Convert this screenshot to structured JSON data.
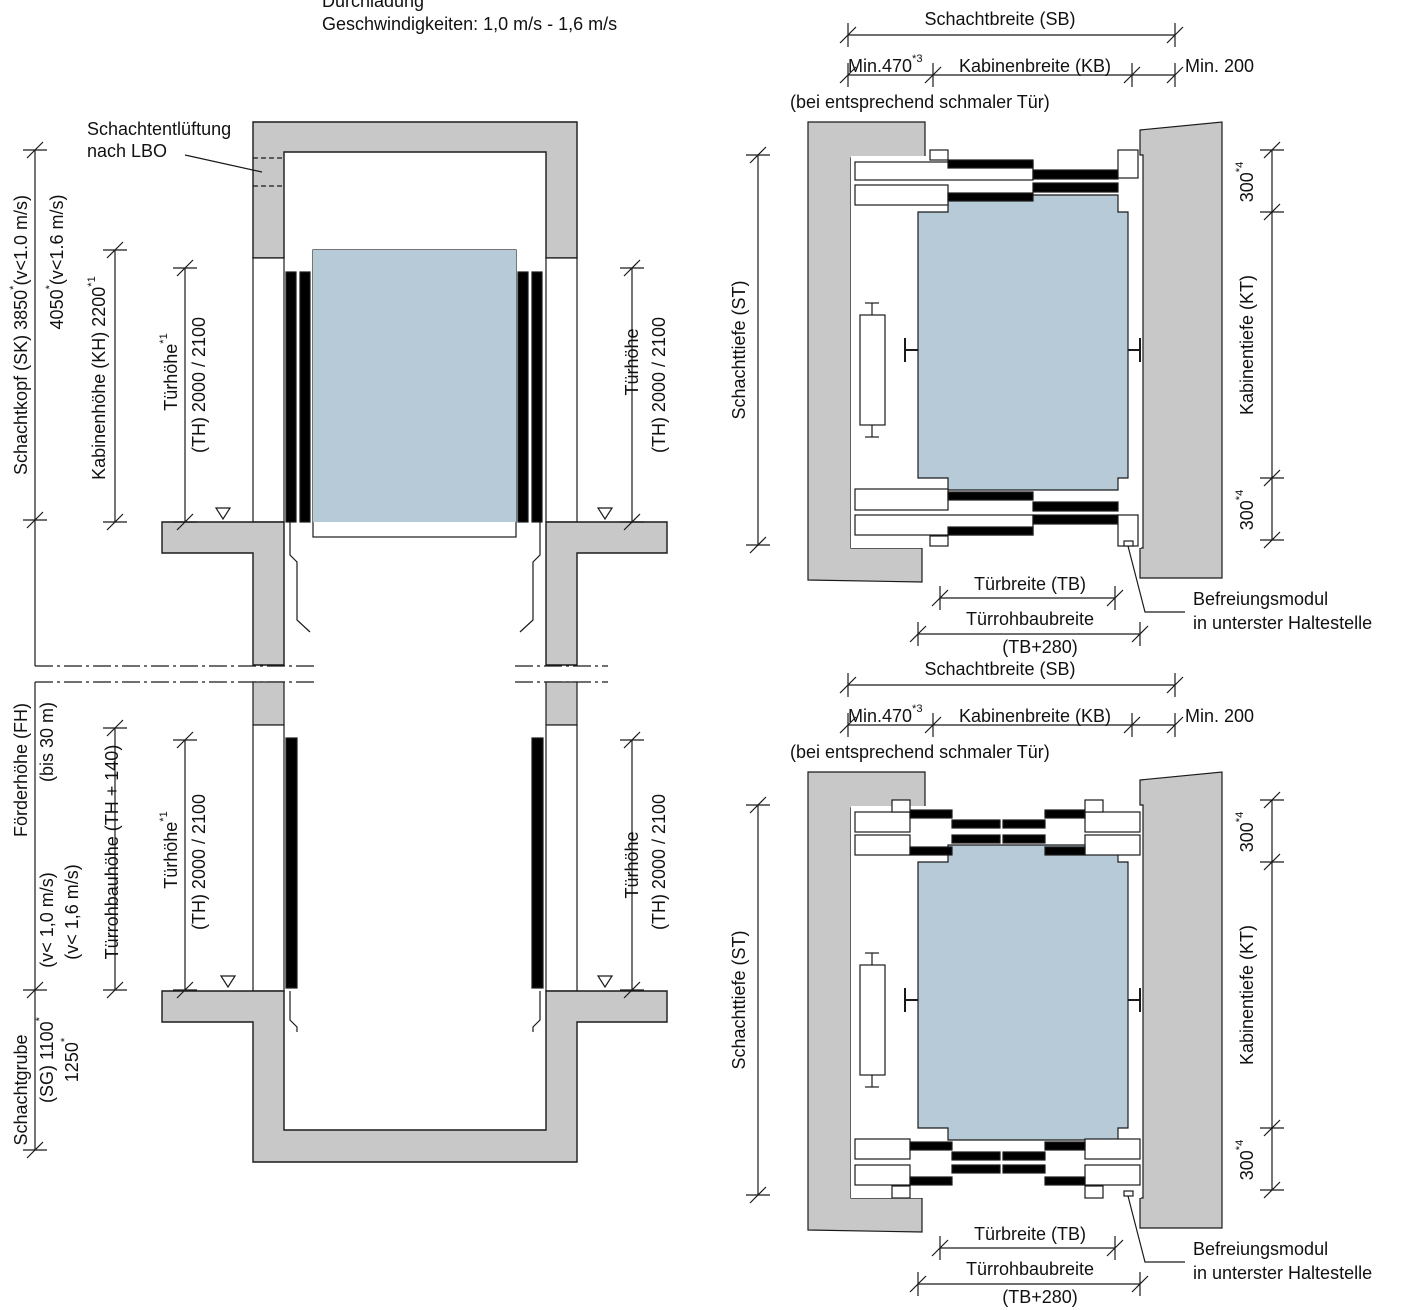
{
  "header": {
    "line1": "Durchladung",
    "line2": "Geschwindigkeiten: 1,0 m/s - 1,6 m/s"
  },
  "section": {
    "vent": [
      "Schachtentlüftung",
      "nach LBO"
    ],
    "shaft_head_1": {
      "text": "Schachtkopf (SK) 3850",
      "sup": "*",
      "after": "(v<1.0 m/s)"
    },
    "shaft_head_2": {
      "text": "4050",
      "sup": "*",
      "after": "(v<1.6 m/s)"
    },
    "cabin_height": {
      "text": "Kabinenhöhe (KH) 2200",
      "sup": "*1"
    },
    "upper_door_left": {
      "text": "Türhöhe",
      "sup": "*1"
    },
    "upper_door_left_value": "(TH) 2000 / 2100",
    "upper_door_right": "Türhöhe",
    "upper_door_right_value": "(TH) 2000 / 2100",
    "travel": "Förderhöhe (FH)",
    "travel_max": "(bis 30 m)",
    "speed_1": "(v< 1,0 m/s)",
    "speed_2": "(v< 1,6 m/s)",
    "door_opening_height": "Türrohbauhöhe (TH + 140)",
    "lower_door_left": {
      "text": "Türhöhe",
      "sup": "*1"
    },
    "lower_door_left_value": "(TH) 2000 / 2100",
    "lower_door_right": "Türhöhe",
    "lower_door_right_value": "(TH) 2000 / 2100",
    "pit": "Schachtgrube",
    "pit_1": {
      "text": "(SG) 1100",
      "sup": "*"
    },
    "pit_2": {
      "text": "1250",
      "sup": "*"
    }
  },
  "plans": [
    {
      "shaft_width": "Schachtbreite (SB)",
      "min_left": {
        "text": "Min.470",
        "sup": "*3"
      },
      "cabin_width": "Kabinenbreite (KB)",
      "min_right": "Min. 200",
      "narrow_door_note": "(bei entsprechend schmaler Tür)",
      "shaft_depth": "Schachttiefe (ST)",
      "clearance_top": {
        "text": "300",
        "sup": "*4"
      },
      "cabin_depth": "Kabinentiefe (KT)",
      "clearance_bottom": {
        "text": "300",
        "sup": "*4"
      },
      "door_width": "Türbreite (TB)",
      "door_opening_width": "Türrohbaubreite",
      "door_opening_formula": "(TB+280)",
      "release_module": [
        "Befreiungsmodul",
        "in unterster Haltestelle"
      ]
    },
    {
      "shaft_width": "Schachtbreite (SB)",
      "min_left": {
        "text": "Min.470",
        "sup": "*3"
      },
      "cabin_width": "Kabinenbreite (KB)",
      "min_right": "Min. 200",
      "narrow_door_note": "(bei entsprechend schmaler Tür)",
      "shaft_depth": "Schachttiefe (ST)",
      "clearance_top": {
        "text": "300",
        "sup": "*4"
      },
      "cabin_depth": "Kabinentiefe (KT)",
      "clearance_bottom": {
        "text": "300",
        "sup": "*4"
      },
      "door_width": "Türbreite (TB)",
      "door_opening_width": "Türrohbaubreite",
      "door_opening_formula": "(TB+280)",
      "release_module": [
        "Befreiungsmodul",
        "in unterster Haltestelle"
      ]
    }
  ]
}
